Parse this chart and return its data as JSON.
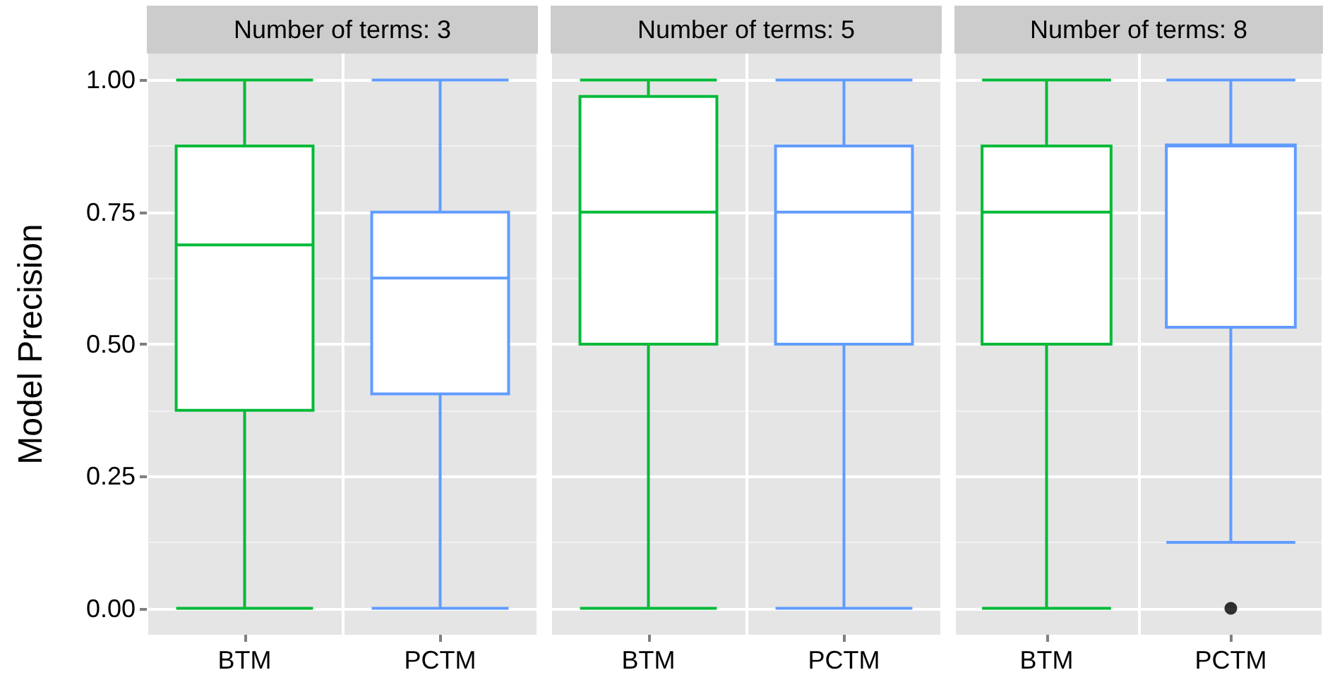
{
  "chart_data": [
    {
      "type": "box",
      "title": "Number of terms: 3",
      "ylabel": "Model Precision",
      "categories": [
        "BTM",
        "PCTM"
      ],
      "colors": [
        "#00ba38",
        "#619cff"
      ],
      "boxes": [
        {
          "low": 0,
          "q1": 0.375,
          "median": 0.688,
          "q3": 0.875,
          "high": 1
        },
        {
          "low": 0,
          "q1": 0.406,
          "median": 0.625,
          "q3": 0.75,
          "high": 1
        }
      ],
      "ylim": [
        -0.05,
        1.05
      ],
      "yticks": [
        {
          "value": 0,
          "label": "0.00"
        },
        {
          "value": 0.25,
          "label": "0.25"
        },
        {
          "value": 0.5,
          "label": "0.50"
        },
        {
          "value": 0.75,
          "label": "0.75"
        },
        {
          "value": 1,
          "label": "1.00"
        }
      ],
      "grid": true
    },
    {
      "type": "box",
      "title": "Number of terms: 5",
      "categories": [
        "BTM",
        "PCTM"
      ],
      "colors": [
        "#00ba38",
        "#619cff"
      ],
      "boxes": [
        {
          "low": 0,
          "q1": 0.5,
          "median": 0.75,
          "q3": 0.969,
          "high": 1
        },
        {
          "low": 0,
          "q1": 0.5,
          "median": 0.75,
          "q3": 0.875,
          "high": 1
        }
      ],
      "ylim": [
        -0.05,
        1.05
      ],
      "yticks": [
        {
          "value": 0,
          "label": null
        },
        {
          "value": 0.25,
          "label": null
        },
        {
          "value": 0.5,
          "label": null
        },
        {
          "value": 0.75,
          "label": null
        },
        {
          "value": 1,
          "label": null
        }
      ],
      "grid": true,
      "tick_labels": "x"
    },
    {
      "type": "box",
      "title": "Number of terms: 8",
      "categories": [
        "BTM",
        "PCTM"
      ],
      "colors": [
        "#00ba38",
        "#619cff"
      ],
      "boxes": [
        {
          "low": 0,
          "q1": 0.5,
          "median": 0.75,
          "q3": 0.875,
          "high": 1
        },
        {
          "low": 0.125,
          "q1": 0.532,
          "median": 0.875,
          "q3": 0.877,
          "high": 1,
          "outliers": [
            0
          ]
        }
      ],
      "ylim": [
        -0.05,
        1.05
      ],
      "yticks": [
        {
          "value": 0,
          "label": null
        },
        {
          "value": 0.25,
          "label": null
        },
        {
          "value": 0.5,
          "label": null
        },
        {
          "value": 0.75,
          "label": null
        },
        {
          "value": 1,
          "label": null
        }
      ],
      "grid": true,
      "tick_labels": "x"
    }
  ]
}
